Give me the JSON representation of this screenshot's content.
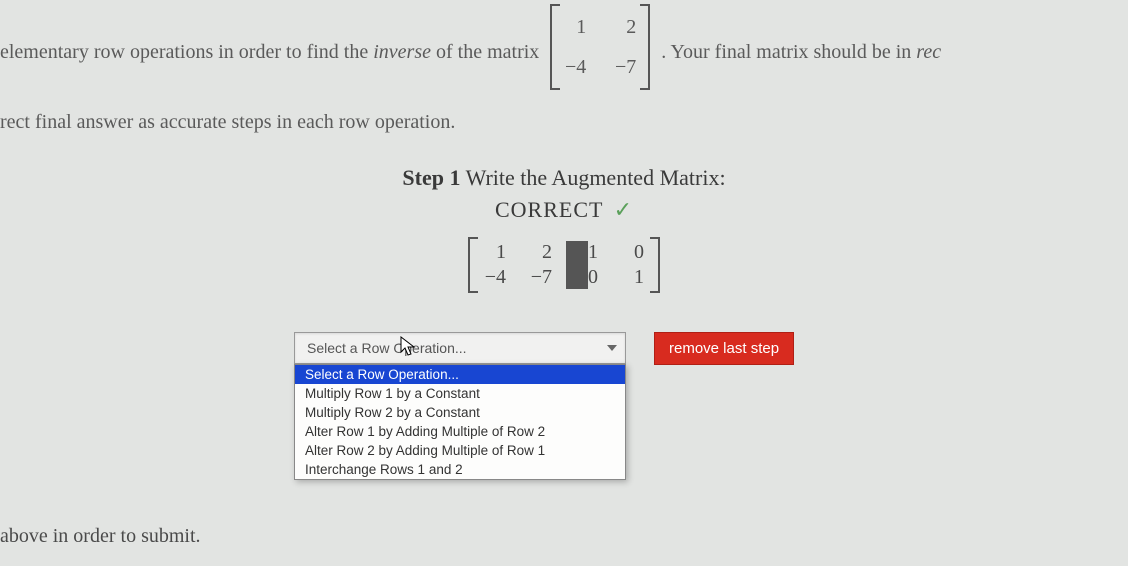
{
  "instructions": {
    "part1": "elementary row operations in order to find the ",
    "italic1": "inverse",
    "part2": " of the matrix",
    "part3": ". Your final matrix should be in ",
    "italic2": "rec",
    "line2": "rect final answer as accurate steps in each row operation."
  },
  "problem_matrix": {
    "rows": 2,
    "cols": 2,
    "cells": [
      "1",
      "2",
      "−4",
      "−7"
    ]
  },
  "step": {
    "label_bold": "Step 1",
    "label_rest": " Write the Augmented Matrix:",
    "status": "CORRECT",
    "check": "✓"
  },
  "aug_matrix": {
    "rows": 2,
    "cols": 4,
    "cells": [
      "1",
      "2",
      "1",
      "0",
      "−4",
      "−7",
      "0",
      "1"
    ]
  },
  "select": {
    "placeholder": "Select a Row Operation...",
    "options": [
      {
        "label": "Select a Row Operation...",
        "selected": true
      },
      {
        "label": "Multiply Row 1 by a Constant",
        "selected": false
      },
      {
        "label": "Multiply Row 2 by a Constant",
        "selected": false
      },
      {
        "label": "Alter Row 1 by Adding Multiple of Row 2",
        "selected": false
      },
      {
        "label": "Alter Row 2 by Adding Multiple of Row 1",
        "selected": false
      },
      {
        "label": "Interchange Rows 1 and 2",
        "selected": false
      }
    ]
  },
  "buttons": {
    "remove": "remove last step"
  },
  "footer": "above in order to submit.",
  "colors": {
    "background": "#e2e4e2",
    "text": "#4a4a4a",
    "highlight_bg": "#1846d2",
    "highlight_fg": "#ffffff",
    "remove_bg": "#d82b1f",
    "check": "#5aa05a"
  },
  "fontsize": {
    "body": 20,
    "step_title": 22,
    "dropdown": 13.5,
    "button": 15
  }
}
